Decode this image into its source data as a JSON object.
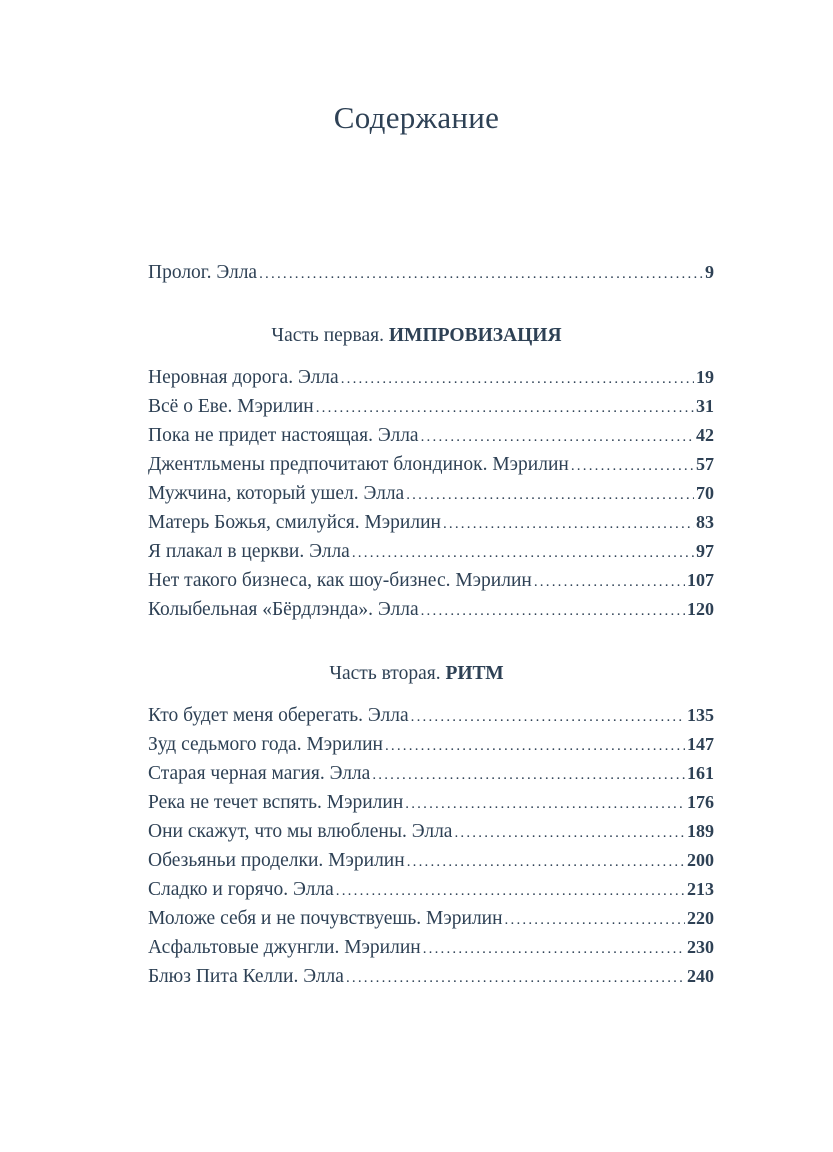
{
  "title": "Содержание",
  "prologue": {
    "title": "Пролог. Элла",
    "page": "9"
  },
  "parts": [
    {
      "label": "Часть первая.",
      "name": "ИМПРОВИЗАЦИЯ",
      "entries": [
        {
          "title": "Неровная дорога. Элла",
          "page": "19"
        },
        {
          "title": "Всё о Еве. Мэрилин",
          "page": "31"
        },
        {
          "title": "Пока не придет настоящая. Элла",
          "page": "42"
        },
        {
          "title": "Джентльмены предпочитают блондинок. Мэрилин",
          "page": "57"
        },
        {
          "title": "Мужчина, который ушел. Элла",
          "page": "70"
        },
        {
          "title": "Матерь Божья, смилуйся. Мэрилин",
          "page": "83"
        },
        {
          "title": "Я плакал в церкви. Элла",
          "page": "97"
        },
        {
          "title": "Нет такого бизнеса, как шоу-бизнес. Мэрилин",
          "page": "107"
        },
        {
          "title": "Колыбельная «Бёрдлэнда». Элла",
          "page": "120"
        }
      ]
    },
    {
      "label": "Часть вторая.",
      "name": "РИТМ",
      "entries": [
        {
          "title": "Кто будет меня оберегать. Элла",
          "page": "135"
        },
        {
          "title": "Зуд седьмого года. Мэрилин",
          "page": "147"
        },
        {
          "title": "Старая черная магия. Элла",
          "page": "161"
        },
        {
          "title": "Река не течет вспять. Мэрилин",
          "page": "176"
        },
        {
          "title": "Они скажут, что мы влюблены. Элла",
          "page": "189"
        },
        {
          "title": "Обезьяньи проделки. Мэрилин",
          "page": "200"
        },
        {
          "title": "Сладко и горячо. Элла",
          "page": "213"
        },
        {
          "title": "Моложе себя и не почувствуешь. Мэрилин",
          "page": "220"
        },
        {
          "title": "Асфальтовые джунгли. Мэрилин",
          "page": "230"
        },
        {
          "title": "Блюз Пита Келли. Элла",
          "page": "240"
        }
      ]
    }
  ]
}
